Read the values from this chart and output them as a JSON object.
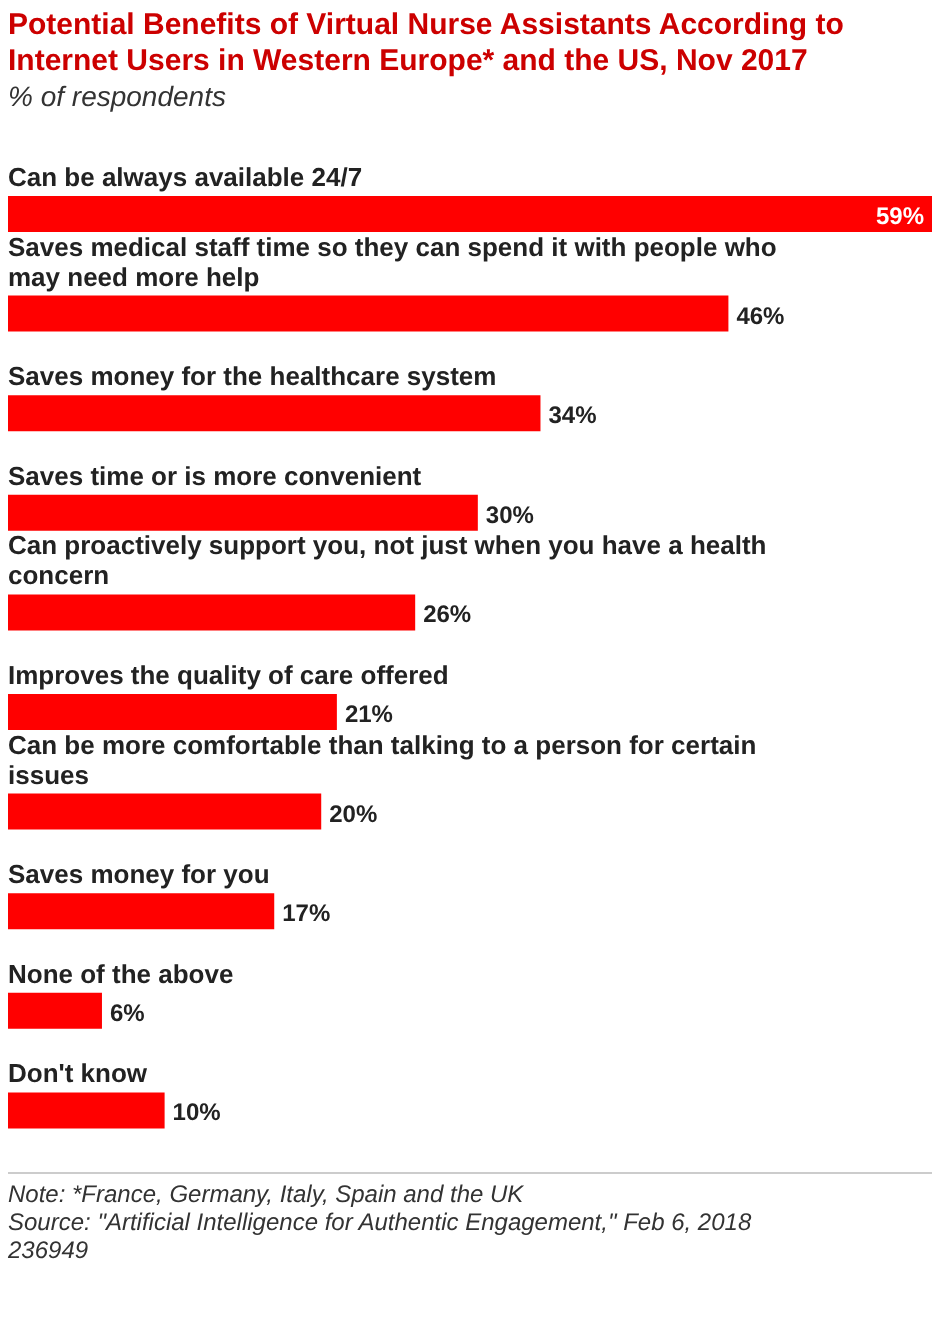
{
  "chart_data": {
    "type": "bar",
    "orientation": "horizontal",
    "title": "Potential Benefits of Virtual Nurse Assistants According to Internet Users in Western Europe* and the US, Nov 2017",
    "subtitle": "% of respondents",
    "categories": [
      "Can be always available 24/7",
      "Saves medical staff time so they can spend it with people who may need more help",
      "Saves money for the healthcare system",
      "Saves time or is more convenient",
      "Can proactively support you, not just when you have a health concern",
      "Improves the quality of care offered",
      "Can be more comfortable than talking to a person for certain issues",
      "Saves money for you",
      "None of the above",
      "Don't know"
    ],
    "values": [
      59,
      46,
      34,
      30,
      26,
      21,
      20,
      17,
      6,
      10
    ],
    "value_labels": [
      "59%",
      "46%",
      "34%",
      "30%",
      "26%",
      "21%",
      "20%",
      "17%",
      "6%",
      "10%"
    ],
    "color": "#ff0000",
    "annotations": [
      "Note: *France, Germany, Italy, Spain and the UK",
      "Source: \"Artificial Intelligence for Authentic Engagement,\" Feb 6, 2018",
      "236949"
    ]
  }
}
